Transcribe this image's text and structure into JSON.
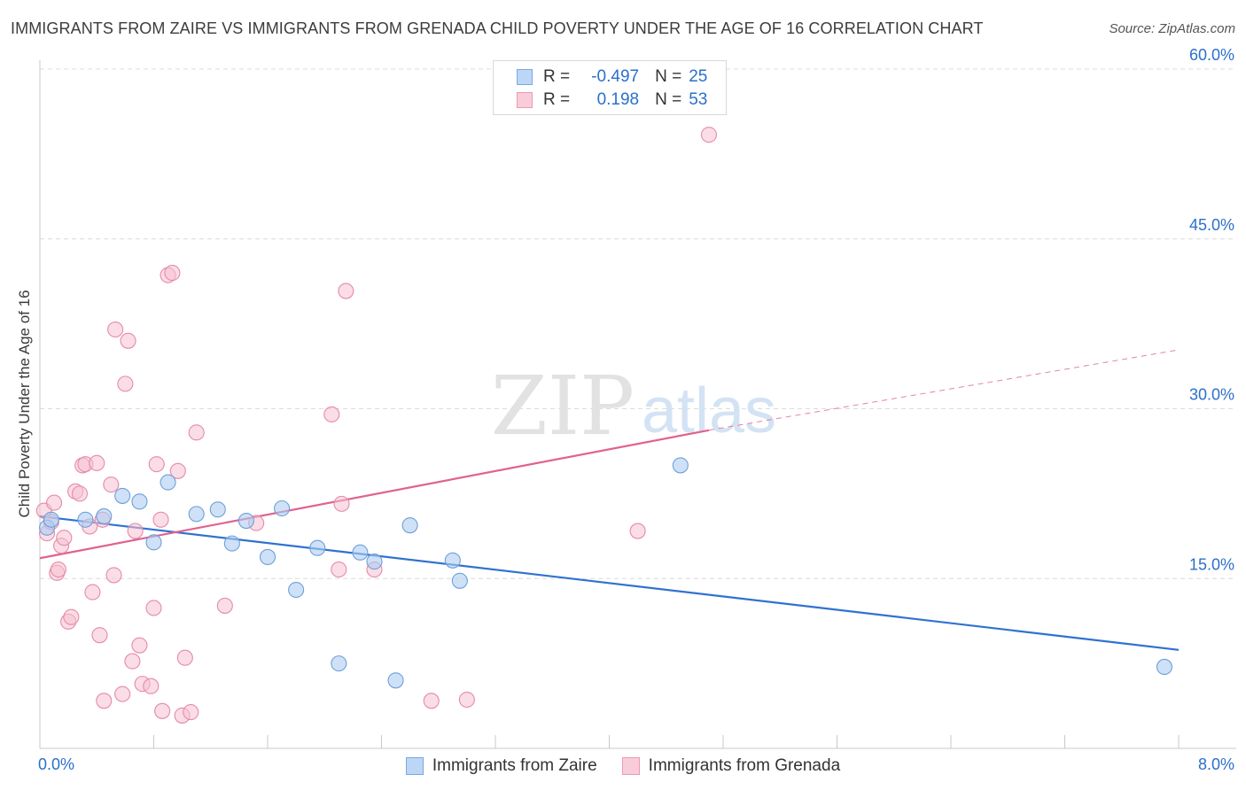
{
  "header": {
    "title": "IMMIGRANTS FROM ZAIRE VS IMMIGRANTS FROM GRENADA CHILD POVERTY UNDER THE AGE OF 16 CORRELATION CHART",
    "source": "Source: ZipAtlas.com"
  },
  "watermark": {
    "zip": "ZIP",
    "atlas": "atlas"
  },
  "legend": {
    "rows": [
      {
        "r_label": "R =",
        "r_value": "-0.497",
        "n_label": "N =",
        "n_value": "25"
      },
      {
        "r_label": "R =",
        "r_value": "0.198",
        "n_label": "N =",
        "n_value": "53"
      }
    ]
  },
  "colors": {
    "zaire_fill": "#aecdf2",
    "zaire_stroke": "#6e9fd9",
    "zaire_line": "#2f72d0",
    "grenada_fill": "#f6c1d1",
    "grenada_stroke": "#e68aa8",
    "grenada_line": "#e0628d",
    "accent_text": "#2b6fcb",
    "grid": "#dcdcdc"
  },
  "chart_data": {
    "type": "scatter",
    "title": "IMMIGRANTS FROM ZAIRE VS IMMIGRANTS FROM GRENADA CHILD POVERTY UNDER THE AGE OF 16 CORRELATION CHART",
    "xlabel": "",
    "ylabel": "Child Poverty Under the Age of 16",
    "xlim": [
      0,
      8
    ],
    "ylim": [
      0,
      60
    ],
    "x_tick_labels": [
      "0.0%",
      "8.0%"
    ],
    "y_ticks": [
      15,
      30,
      45,
      60
    ],
    "y_tick_labels": [
      "15.0%",
      "30.0%",
      "45.0%",
      "60.0%"
    ],
    "grid": true,
    "series": [
      {
        "name": "Immigrants from Zaire",
        "r": -0.497,
        "n": 25,
        "points": [
          [
            0.05,
            19.5
          ],
          [
            0.08,
            20.2
          ],
          [
            0.32,
            20.2
          ],
          [
            0.45,
            20.5
          ],
          [
            0.58,
            22.3
          ],
          [
            0.7,
            21.8
          ],
          [
            0.8,
            18.2
          ],
          [
            0.9,
            23.5
          ],
          [
            1.1,
            20.7
          ],
          [
            1.25,
            21.1
          ],
          [
            1.35,
            18.1
          ],
          [
            1.45,
            20.1
          ],
          [
            1.6,
            16.9
          ],
          [
            1.7,
            21.2
          ],
          [
            1.8,
            14.0
          ],
          [
            1.95,
            17.7
          ],
          [
            2.1,
            7.5
          ],
          [
            2.25,
            17.3
          ],
          [
            2.35,
            16.5
          ],
          [
            2.5,
            6.0
          ],
          [
            2.6,
            19.7
          ],
          [
            2.9,
            16.6
          ],
          [
            2.95,
            14.8
          ],
          [
            4.5,
            25.0
          ],
          [
            7.9,
            7.2
          ]
        ],
        "trend": {
          "x": [
            0,
            8
          ],
          "y": [
            20.5,
            8.7
          ]
        }
      },
      {
        "name": "Immigrants from Grenada",
        "r": 0.198,
        "n": 53,
        "points": [
          [
            0.03,
            21.0
          ],
          [
            0.05,
            19.0
          ],
          [
            0.08,
            20.0
          ],
          [
            0.1,
            21.7
          ],
          [
            0.12,
            15.5
          ],
          [
            0.13,
            15.8
          ],
          [
            0.15,
            17.9
          ],
          [
            0.17,
            18.6
          ],
          [
            0.2,
            11.2
          ],
          [
            0.22,
            11.6
          ],
          [
            0.25,
            22.7
          ],
          [
            0.28,
            22.5
          ],
          [
            0.3,
            25.0
          ],
          [
            0.32,
            25.1
          ],
          [
            0.35,
            19.6
          ],
          [
            0.37,
            13.8
          ],
          [
            0.4,
            25.2
          ],
          [
            0.42,
            10.0
          ],
          [
            0.44,
            20.2
          ],
          [
            0.45,
            4.2
          ],
          [
            0.5,
            23.3
          ],
          [
            0.52,
            15.3
          ],
          [
            0.53,
            37.0
          ],
          [
            0.58,
            4.8
          ],
          [
            0.6,
            32.2
          ],
          [
            0.62,
            36.0
          ],
          [
            0.65,
            7.7
          ],
          [
            0.67,
            19.2
          ],
          [
            0.7,
            9.1
          ],
          [
            0.72,
            5.7
          ],
          [
            0.78,
            5.5
          ],
          [
            0.8,
            12.4
          ],
          [
            0.82,
            25.1
          ],
          [
            0.85,
            20.2
          ],
          [
            0.86,
            3.3
          ],
          [
            0.9,
            41.8
          ],
          [
            0.93,
            42.0
          ],
          [
            0.97,
            24.5
          ],
          [
            1.0,
            2.9
          ],
          [
            1.02,
            8.0
          ],
          [
            1.06,
            3.2
          ],
          [
            1.1,
            27.9
          ],
          [
            1.3,
            12.6
          ],
          [
            1.52,
            19.9
          ],
          [
            2.05,
            29.5
          ],
          [
            2.1,
            15.8
          ],
          [
            2.12,
            21.6
          ],
          [
            2.15,
            40.4
          ],
          [
            2.35,
            15.8
          ],
          [
            2.75,
            4.2
          ],
          [
            3.0,
            4.3
          ],
          [
            4.2,
            19.2
          ],
          [
            4.7,
            54.2
          ]
        ],
        "trend": {
          "x": [
            0,
            4.7
          ],
          "y": [
            16.8,
            28.1
          ]
        },
        "trend_dashed": {
          "x": [
            4.7,
            8
          ],
          "y": [
            28.1,
            35.2
          ]
        }
      }
    ]
  },
  "bottom_legend": [
    {
      "label": "Immigrants from Zaire"
    },
    {
      "label": "Immigrants from Grenada"
    }
  ]
}
